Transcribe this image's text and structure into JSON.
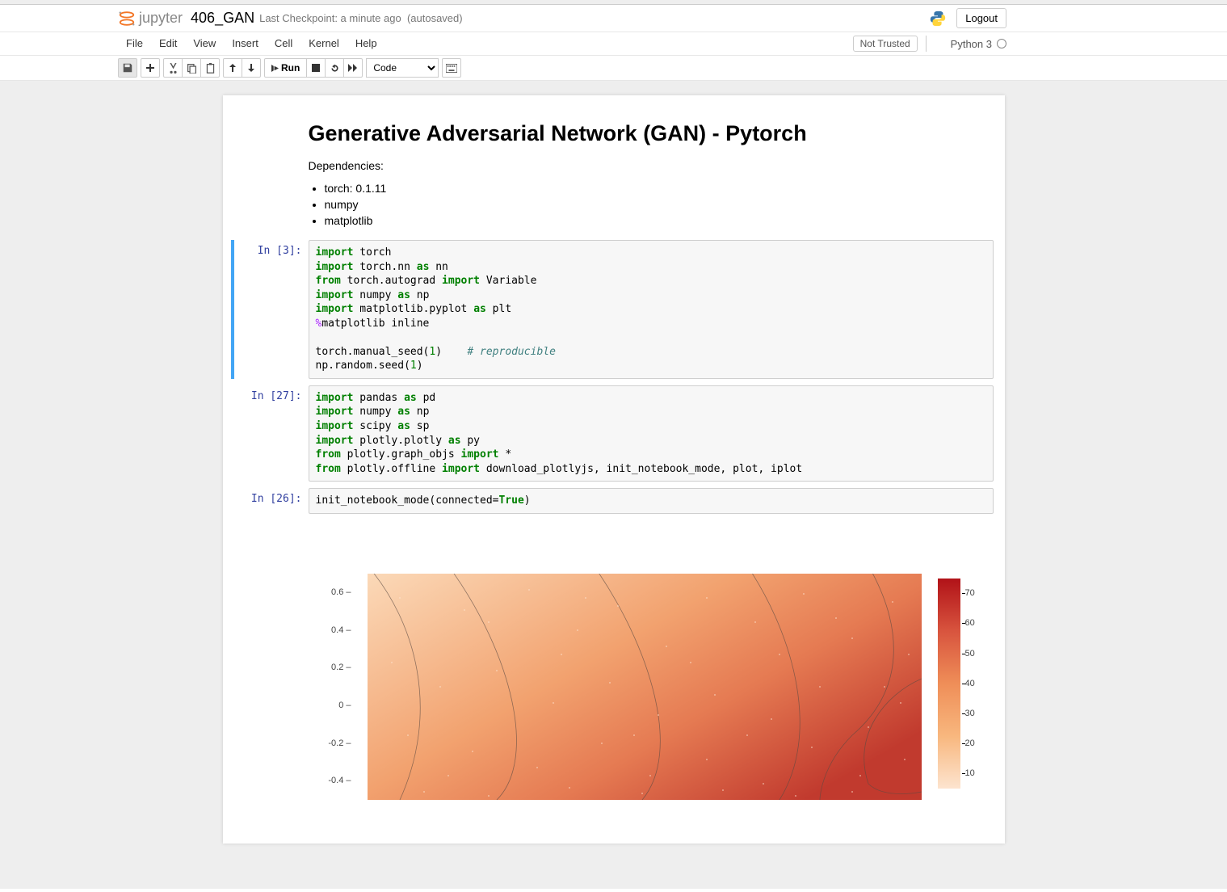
{
  "header": {
    "logo_text": "jupyter",
    "notebook_name": "406_GAN",
    "checkpoint": "Last Checkpoint: a minute ago",
    "autosave": "(autosaved)",
    "logout": "Logout"
  },
  "menubar": {
    "items": [
      "File",
      "Edit",
      "View",
      "Insert",
      "Cell",
      "Kernel",
      "Help"
    ],
    "trusted": "Not Trusted",
    "kernel": "Python 3"
  },
  "toolbar": {
    "run_label": "Run",
    "cell_type": "Code"
  },
  "markdown": {
    "title": "Generative Adversarial Network (GAN) - Pytorch",
    "deps_label": "Dependencies:",
    "deps": [
      "torch: 0.1.11",
      "numpy",
      "matplotlib"
    ]
  },
  "cells": {
    "c1": {
      "prompt": "In [3]:"
    },
    "c2": {
      "prompt": "In [27]:"
    },
    "c3": {
      "prompt": "In [26]:"
    }
  },
  "code1_lines": [
    [
      {
        "t": "import ",
        "c": "k-keyword"
      },
      {
        "t": "torch"
      }
    ],
    [
      {
        "t": "import ",
        "c": "k-keyword"
      },
      {
        "t": "torch.nn "
      },
      {
        "t": "as ",
        "c": "k-as"
      },
      {
        "t": "nn"
      }
    ],
    [
      {
        "t": "from ",
        "c": "k-keyword"
      },
      {
        "t": "torch.autograd "
      },
      {
        "t": "import ",
        "c": "k-keyword"
      },
      {
        "t": "Variable"
      }
    ],
    [
      {
        "t": "import ",
        "c": "k-keyword"
      },
      {
        "t": "numpy "
      },
      {
        "t": "as ",
        "c": "k-as"
      },
      {
        "t": "np"
      }
    ],
    [
      {
        "t": "import ",
        "c": "k-keyword"
      },
      {
        "t": "matplotlib.pyplot "
      },
      {
        "t": "as ",
        "c": "k-as"
      },
      {
        "t": "plt"
      }
    ],
    [
      {
        "t": "%",
        "c": "k-magic"
      },
      {
        "t": "matplotlib inline"
      }
    ],
    [
      {
        "t": ""
      }
    ],
    [
      {
        "t": "torch.manual_seed("
      },
      {
        "t": "1",
        "c": "k-num"
      },
      {
        "t": ")    "
      },
      {
        "t": "# reproducible",
        "c": "k-comment"
      }
    ],
    [
      {
        "t": "np.random.seed("
      },
      {
        "t": "1",
        "c": "k-num"
      },
      {
        "t": ")"
      }
    ]
  ],
  "code2_lines": [
    [
      {
        "t": "import ",
        "c": "k-keyword"
      },
      {
        "t": "pandas "
      },
      {
        "t": "as ",
        "c": "k-as"
      },
      {
        "t": "pd"
      }
    ],
    [
      {
        "t": "import ",
        "c": "k-keyword"
      },
      {
        "t": "numpy "
      },
      {
        "t": "as ",
        "c": "k-as"
      },
      {
        "t": "np"
      }
    ],
    [
      {
        "t": "import ",
        "c": "k-keyword"
      },
      {
        "t": "scipy "
      },
      {
        "t": "as ",
        "c": "k-as"
      },
      {
        "t": "sp"
      }
    ],
    [
      {
        "t": "import ",
        "c": "k-keyword"
      },
      {
        "t": "plotly.plotly "
      },
      {
        "t": "as ",
        "c": "k-as"
      },
      {
        "t": "py"
      }
    ],
    [
      {
        "t": "from ",
        "c": "k-keyword"
      },
      {
        "t": "plotly.graph_objs "
      },
      {
        "t": "import ",
        "c": "k-keyword"
      },
      {
        "t": "*"
      }
    ],
    [
      {
        "t": "from ",
        "c": "k-keyword"
      },
      {
        "t": "plotly.offline "
      },
      {
        "t": "import ",
        "c": "k-keyword"
      },
      {
        "t": "download_plotlyjs, init_notebook_mode, plot, iplot"
      }
    ]
  ],
  "code3_lines": [
    [
      {
        "t": "init_notebook_mode(connected="
      },
      {
        "t": "True",
        "c": "k-bool"
      },
      {
        "t": ")"
      }
    ]
  ],
  "chart": {
    "type": "contour_heatmap",
    "y_ticks": [
      0.6,
      0.4,
      0.2,
      0,
      -0.2,
      -0.4
    ],
    "y_min": -0.5,
    "y_max": 0.7,
    "colorbar_ticks": [
      70,
      60,
      50,
      40,
      30,
      20,
      10
    ],
    "colorbar_min": 5,
    "colorbar_max": 75,
    "gradient_stops": [
      {
        "p": 0,
        "c": "#fde4cf"
      },
      {
        "p": 25,
        "c": "#f8b77e"
      },
      {
        "p": 50,
        "c": "#ef8e58"
      },
      {
        "p": 75,
        "c": "#d8543e"
      },
      {
        "p": 100,
        "c": "#b11218"
      }
    ],
    "bg_gradient_tl": "#fbd9b8",
    "bg_gradient_br": "#c13a2e",
    "contour_color": "#5a4a42",
    "contour_width": 0.8,
    "contours": [
      "M 0 -10 C 60 60, 90 170, 40 280",
      "M 100 -10 C 180 100, 210 230, 160 280",
      "M 280 -10 C 350 90, 390 220, 340 280",
      "M 470 -10 C 530 80, 560 200, 510 280",
      "M 620 -10 C 660 60, 670 140, 600 200 C 560 240, 560 280, 560 280",
      "M 686 130 C 640 150, 600 200, 620 260 C 640 280, 686 270, 686 270"
    ],
    "dot_color": "#ffe8d5",
    "dot_radius": 0.9,
    "dots": [
      [
        40,
        30
      ],
      [
        120,
        45
      ],
      [
        200,
        20
      ],
      [
        260,
        70
      ],
      [
        310,
        40
      ],
      [
        370,
        90
      ],
      [
        420,
        30
      ],
      [
        480,
        60
      ],
      [
        540,
        25
      ],
      [
        600,
        80
      ],
      [
        650,
        35
      ],
      [
        670,
        100
      ],
      [
        30,
        110
      ],
      [
        90,
        140
      ],
      [
        160,
        120
      ],
      [
        230,
        160
      ],
      [
        300,
        135
      ],
      [
        360,
        175
      ],
      [
        430,
        150
      ],
      [
        500,
        180
      ],
      [
        560,
        140
      ],
      [
        620,
        190
      ],
      [
        660,
        160
      ],
      [
        50,
        200
      ],
      [
        130,
        220
      ],
      [
        210,
        240
      ],
      [
        290,
        210
      ],
      [
        350,
        250
      ],
      [
        420,
        230
      ],
      [
        490,
        260
      ],
      [
        550,
        215
      ],
      [
        610,
        250
      ],
      [
        665,
        230
      ],
      [
        70,
        270
      ],
      [
        150,
        275
      ],
      [
        250,
        265
      ],
      [
        340,
        272
      ],
      [
        440,
        268
      ],
      [
        530,
        275
      ],
      [
        600,
        270
      ],
      [
        150,
        60
      ],
      [
        400,
        110
      ],
      [
        470,
        200
      ],
      [
        240,
        100
      ],
      [
        580,
        55
      ],
      [
        100,
        250
      ],
      [
        330,
        200
      ],
      [
        270,
        30
      ],
      [
        510,
        100
      ],
      [
        640,
        140
      ]
    ]
  }
}
